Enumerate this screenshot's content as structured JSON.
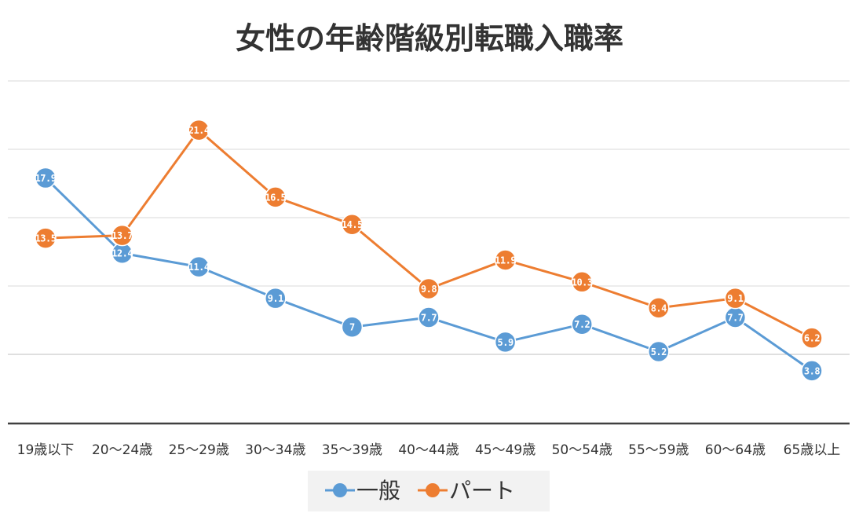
{
  "chart_data": {
    "type": "line",
    "title": "女性の年齢階級別転職入職率",
    "categories": [
      "19歳以下",
      "20～24歳",
      "25～29歳",
      "30～34歳",
      "35～39歳",
      "40～44歳",
      "45～49歳",
      "50～54歳",
      "55～59歳",
      "60～64歳",
      "65歳以上"
    ],
    "series": [
      {
        "name": "一般",
        "color": "#5b9bd5",
        "values": [
          17.9,
          12.4,
          11.4,
          9.1,
          7,
          7.7,
          5.9,
          7.2,
          5.2,
          7.7,
          3.8
        ]
      },
      {
        "name": "パート",
        "color": "#ed7d31",
        "values": [
          13.5,
          13.7,
          21.4,
          16.5,
          14.5,
          9.8,
          11.9,
          10.3,
          8.4,
          9.1,
          6.2
        ]
      }
    ],
    "ylim": [
      0,
      25
    ],
    "grid": true,
    "legend": "bottom"
  }
}
